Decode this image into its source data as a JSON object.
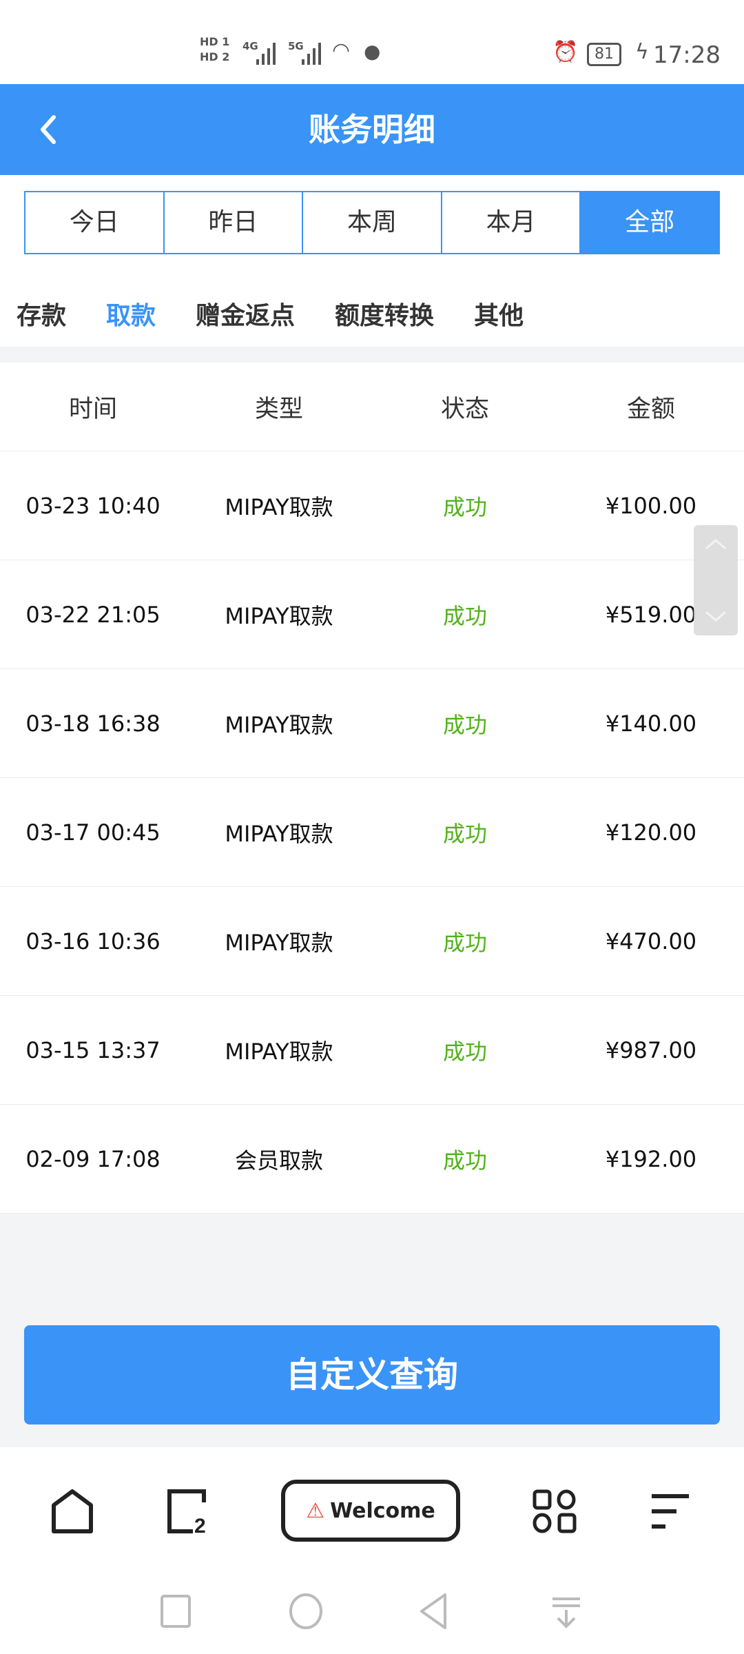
{
  "status_bar": {
    "time": "17:28",
    "battery": "81",
    "sim1": "HD 1",
    "sim2": "HD 2",
    "net1": "4G",
    "net2": "5G"
  },
  "header": {
    "title": "账务明细",
    "back_icon": "chevron-left-icon"
  },
  "period_tabs": [
    {
      "label": "今日"
    },
    {
      "label": "昨日"
    },
    {
      "label": "本周"
    },
    {
      "label": "本月"
    },
    {
      "label": "全部",
      "active": true
    }
  ],
  "category_tabs": [
    {
      "label": "存款"
    },
    {
      "label": "取款",
      "active": true
    },
    {
      "label": "赠金返点"
    },
    {
      "label": "额度转换"
    },
    {
      "label": "其他"
    }
  ],
  "table": {
    "headers": [
      "时间",
      "类型",
      "状态",
      "金额"
    ],
    "rows": [
      {
        "time": "03-23 10:40",
        "type": "MIPAY取款",
        "status": "成功",
        "amount": "¥100.00"
      },
      {
        "time": "03-22 21:05",
        "type": "MIPAY取款",
        "status": "成功",
        "amount": "¥519.00"
      },
      {
        "time": "03-18 16:38",
        "type": "MIPAY取款",
        "status": "成功",
        "amount": "¥140.00"
      },
      {
        "time": "03-17 00:45",
        "type": "MIPAY取款",
        "status": "成功",
        "amount": "¥120.00"
      },
      {
        "time": "03-16 10:36",
        "type": "MIPAY取款",
        "status": "成功",
        "amount": "¥470.00"
      },
      {
        "time": "03-15 13:37",
        "type": "MIPAY取款",
        "status": "成功",
        "amount": "¥987.00"
      },
      {
        "time": "02-09 17:08",
        "type": "会员取款",
        "status": "成功",
        "amount": "¥192.00"
      }
    ]
  },
  "query_button": "自定义查询",
  "browser_nav": {
    "welcome": "Welcome",
    "tabs_count": "2"
  },
  "colors": {
    "primary": "#3a93f7",
    "success": "#52b21a"
  }
}
